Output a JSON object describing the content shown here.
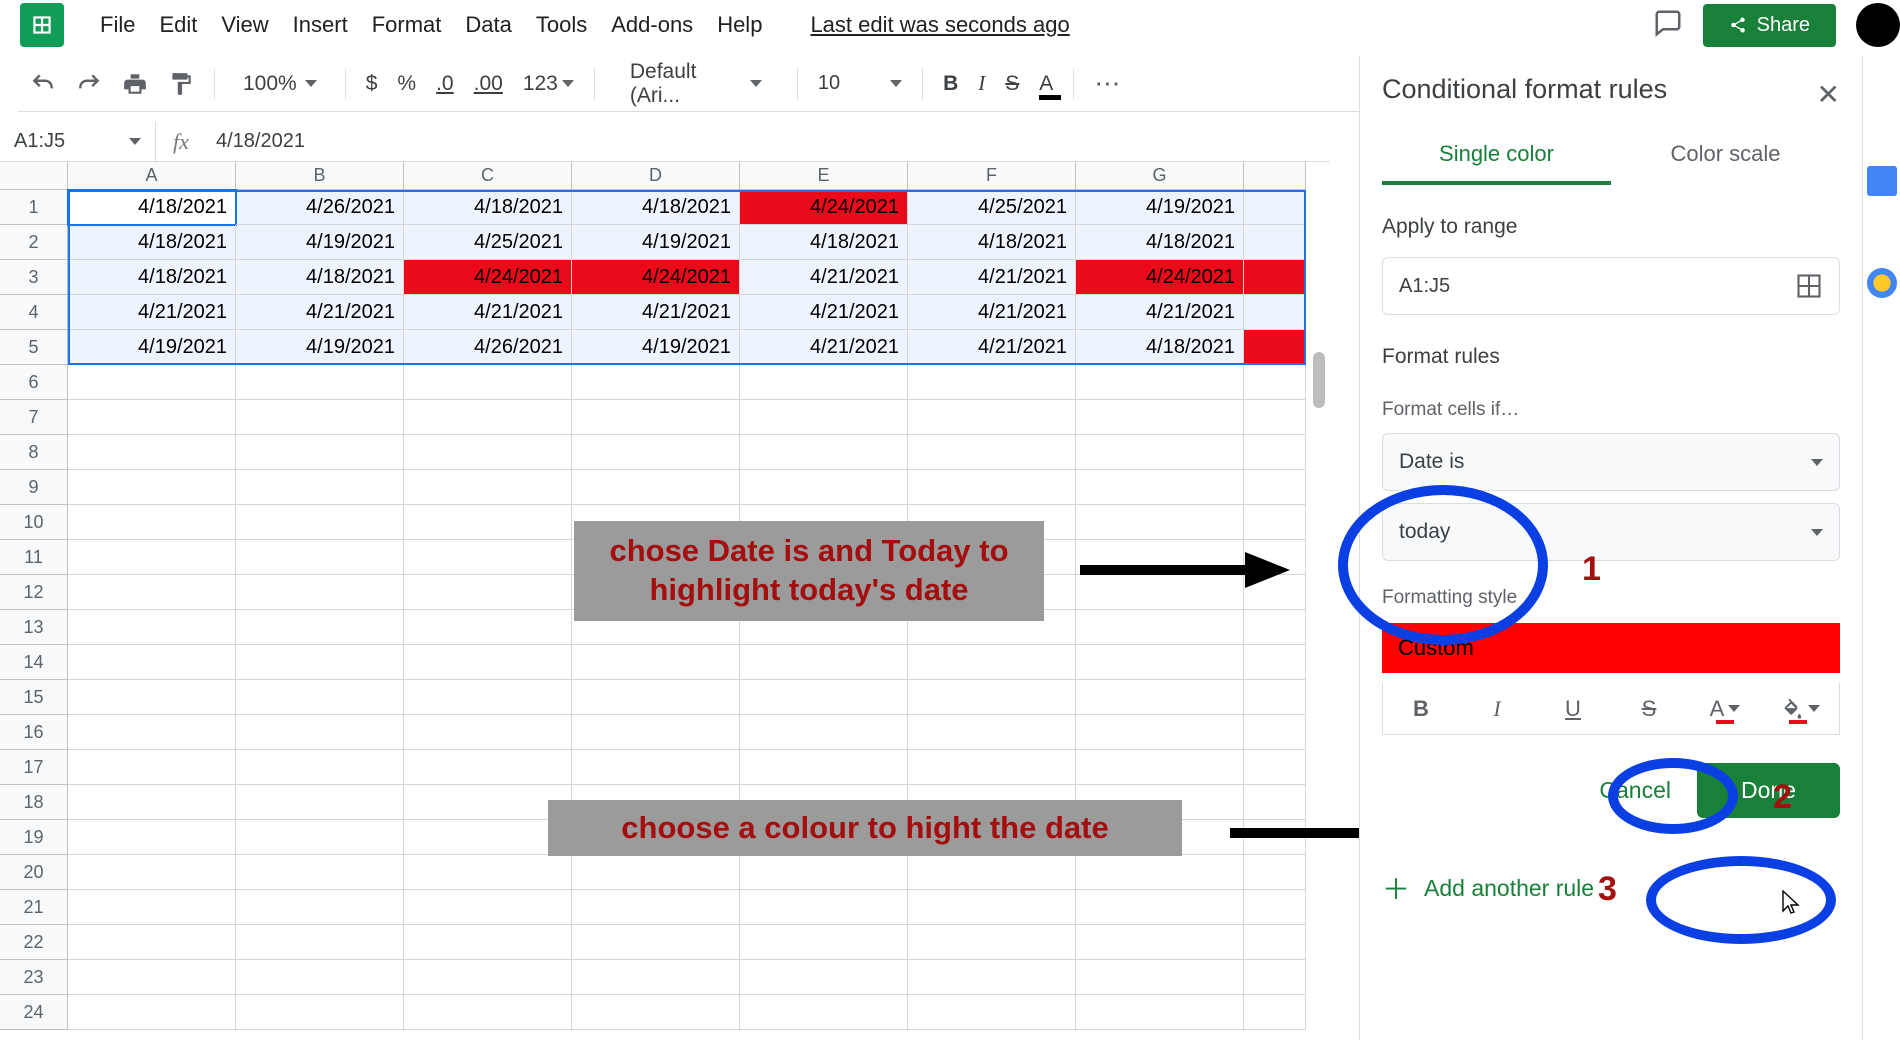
{
  "menu": {
    "items": [
      "File",
      "Edit",
      "View",
      "Insert",
      "Format",
      "Data",
      "Tools",
      "Add-ons",
      "Help"
    ],
    "last_edit": "Last edit was seconds ago",
    "share": "Share"
  },
  "toolbar": {
    "zoom": "100%",
    "currency": "$",
    "percent": "%",
    "dec_less": ".0",
    "dec_more": ".00",
    "num_fmt": "123",
    "font": "Default (Ari...",
    "size": "10",
    "bold": "B",
    "italic": "I",
    "strike": "S",
    "text_color_letter": "A",
    "text_color_bar": "#000000",
    "more": "⋯"
  },
  "name_box": "A1:J5",
  "formula_value": "4/18/2021",
  "columns": {
    "labels": [
      "A",
      "B",
      "C",
      "D",
      "E",
      "F",
      "G",
      ""
    ],
    "widths": [
      168,
      168,
      168,
      168,
      168,
      168,
      168,
      62
    ]
  },
  "row_heights": {
    "data": 35,
    "empty": 35
  },
  "row_count_empty": 19,
  "cells": [
    [
      "4/18/2021",
      "4/26/2021",
      "4/18/2021",
      "4/18/2021",
      "4/24/2021",
      "4/25/2021",
      "4/19/2021",
      ""
    ],
    [
      "4/18/2021",
      "4/19/2021",
      "4/25/2021",
      "4/19/2021",
      "4/18/2021",
      "4/18/2021",
      "4/18/2021",
      ""
    ],
    [
      "4/18/2021",
      "4/18/2021",
      "4/24/2021",
      "4/24/2021",
      "4/21/2021",
      "4/21/2021",
      "4/24/2021",
      ""
    ],
    [
      "4/21/2021",
      "4/21/2021",
      "4/21/2021",
      "4/21/2021",
      "4/21/2021",
      "4/21/2021",
      "4/21/2021",
      ""
    ],
    [
      "4/19/2021",
      "4/19/2021",
      "4/26/2021",
      "4/19/2021",
      "4/21/2021",
      "4/21/2021",
      "4/18/2021",
      ""
    ]
  ],
  "highlighted_cells": [
    [
      0,
      4
    ],
    [
      2,
      2
    ],
    [
      2,
      3
    ],
    [
      2,
      6
    ],
    [
      2,
      7
    ],
    [
      4,
      7
    ]
  ],
  "highlight_color": "#eb0a1a",
  "selection_tint_color": "rgba(26,115,232,0.08)",
  "active_cell": [
    0,
    0
  ],
  "annotations": {
    "text1": "chose Date is and Today to highlight today's date",
    "text2": "choose a colour to hight the date",
    "num1": "1",
    "num2": "2",
    "num3": "3",
    "text_color": "#a40e0e",
    "bg_color": "#9b9b9b",
    "circle_color": "#0a3fe3",
    "arrow_color": "#000000"
  },
  "panel": {
    "title": "Conditional format rules",
    "tab_single": "Single color",
    "tab_scale": "Color scale",
    "apply_label": "Apply to range",
    "range": "A1:J5",
    "rules_label": "Format rules",
    "cells_if": "Format cells if…",
    "cond": "Date is",
    "cond_val": "today",
    "style_label": "Formatting style",
    "style_name": "Custom",
    "style_swatch": "#ff0000",
    "cancel": "Cancel",
    "done": "Done",
    "add_rule": "Add another rule"
  }
}
